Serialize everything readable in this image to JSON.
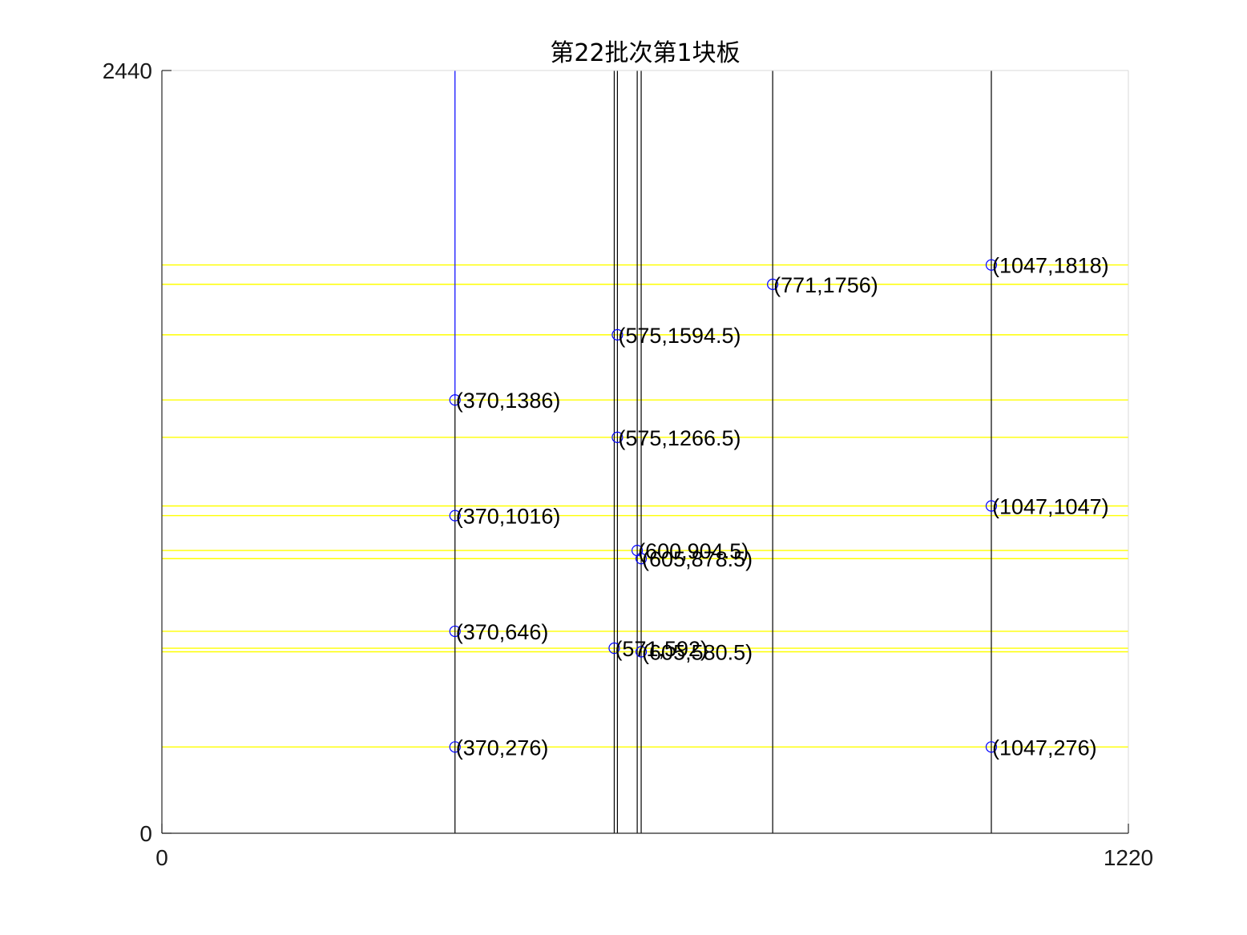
{
  "chart_data": {
    "type": "line",
    "title": "第22批次第1块板",
    "xlabel": "",
    "ylabel": "",
    "xlim": [
      0,
      1220
    ],
    "ylim": [
      0,
      2440
    ],
    "x_ticks": [
      {
        "value": 0,
        "label": "0"
      },
      {
        "value": 1220,
        "label": "1220"
      }
    ],
    "y_ticks": [
      {
        "value": 0,
        "label": "0"
      },
      {
        "value": 2440,
        "label": "2440"
      }
    ],
    "grid": false,
    "colors": {
      "horizontal_cuts": "#ffff00",
      "vertical_cuts": "#000000",
      "highlight_cut": "#0000ff",
      "markers": "#0000ff",
      "frame": "#d9d9d9"
    },
    "horizontal_cuts": [
      1818,
      1756,
      1594.5,
      1386,
      1266.5,
      1047,
      1016,
      904.5,
      878.5,
      646,
      592,
      580.5,
      276
    ],
    "vertical_cuts": [
      {
        "x": 370,
        "y0": 0,
        "y1": 1386,
        "color": "#000000"
      },
      {
        "x": 370,
        "y0": 1386,
        "y1": 2440,
        "color": "#0000ff"
      },
      {
        "x": 571,
        "y0": 0,
        "y1": 2440,
        "color": "#000000"
      },
      {
        "x": 575,
        "y0": 0,
        "y1": 2440,
        "color": "#000000"
      },
      {
        "x": 600,
        "y0": 0,
        "y1": 2440,
        "color": "#000000"
      },
      {
        "x": 605,
        "y0": 0,
        "y1": 2440,
        "color": "#000000"
      },
      {
        "x": 771,
        "y0": 0,
        "y1": 2440,
        "color": "#000000"
      },
      {
        "x": 1047,
        "y0": 0,
        "y1": 2440,
        "color": "#000000"
      }
    ],
    "points": [
      {
        "x": 1047,
        "y": 1818,
        "label": "(1047,1818)"
      },
      {
        "x": 771,
        "y": 1756,
        "label": "(771,1756)"
      },
      {
        "x": 575,
        "y": 1594.5,
        "label": "(575,1594.5)"
      },
      {
        "x": 370,
        "y": 1386,
        "label": "(370,1386)"
      },
      {
        "x": 575,
        "y": 1266.5,
        "label": "(575,1266.5)"
      },
      {
        "x": 1047,
        "y": 1047,
        "label": "(1047,1047)"
      },
      {
        "x": 370,
        "y": 1016,
        "label": "(370,1016)"
      },
      {
        "x": 600,
        "y": 904.5,
        "label": "(600,904.5)"
      },
      {
        "x": 605,
        "y": 878.5,
        "label": "(605,878.5)"
      },
      {
        "x": 370,
        "y": 646,
        "label": "(370,646)"
      },
      {
        "x": 571,
        "y": 592,
        "label": "(571,592)"
      },
      {
        "x": 605,
        "y": 580.5,
        "label": "(605,580.5)"
      },
      {
        "x": 370,
        "y": 276,
        "label": "(370,276)"
      },
      {
        "x": 1047,
        "y": 276,
        "label": "(1047,276)"
      }
    ]
  }
}
